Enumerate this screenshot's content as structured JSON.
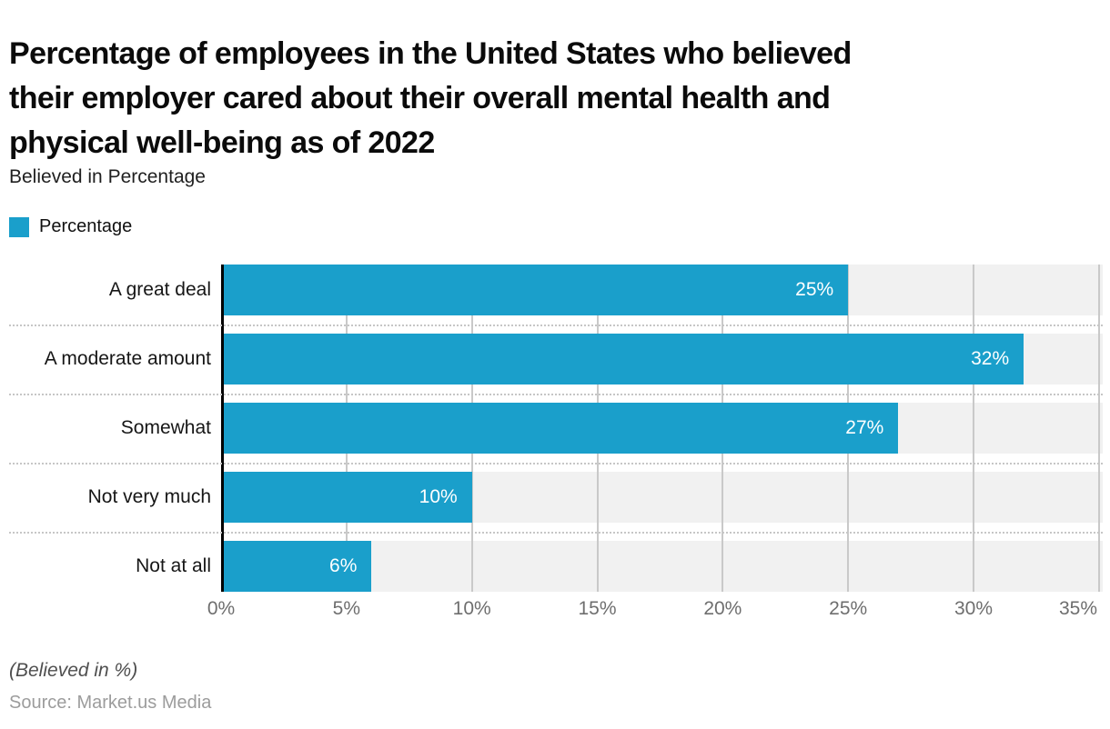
{
  "header": {
    "title_lines": [
      "Percentage of employees in the United States who believed",
      "their employer cared about their overall mental health and",
      "physical well-being as of 2022"
    ],
    "subtitle": "Believed in Percentage"
  },
  "legend": {
    "label": "Percentage",
    "swatch_color": "#1A9FCB"
  },
  "chart_data": {
    "type": "bar",
    "orientation": "horizontal",
    "title": "Percentage of employees in the United States who believed their employer cared about their overall mental health and physical well-being as of 2022",
    "subtitle": "Believed in Percentage",
    "series_name": "Percentage",
    "categories": [
      "A great deal",
      "A moderate amount",
      "Somewhat",
      "Not very much",
      "Not at all"
    ],
    "values": [
      25,
      32,
      27,
      10,
      6
    ],
    "value_suffix": "%",
    "x_tick_values": [
      0,
      5,
      10,
      15,
      20,
      25,
      30,
      35
    ],
    "x_tick_labels": [
      "0%",
      "5%",
      "10%",
      "15%",
      "20%",
      "25%",
      "30%",
      "35%"
    ],
    "xlim": [
      0,
      35.15
    ],
    "grid": "vertical-solid-plus-dotted-row-separators",
    "legend_position": "top-left",
    "colors": {
      "bar": "#1A9FCB",
      "row_band": "#F1F1F1",
      "gridline": "#C9C9C9",
      "axis_line": "#000000",
      "tick_text": "#6E6E6E",
      "value_label": "#FFFFFF"
    }
  },
  "footer": {
    "note": "(Believed in %)",
    "source": "Source: Market.us Media"
  }
}
